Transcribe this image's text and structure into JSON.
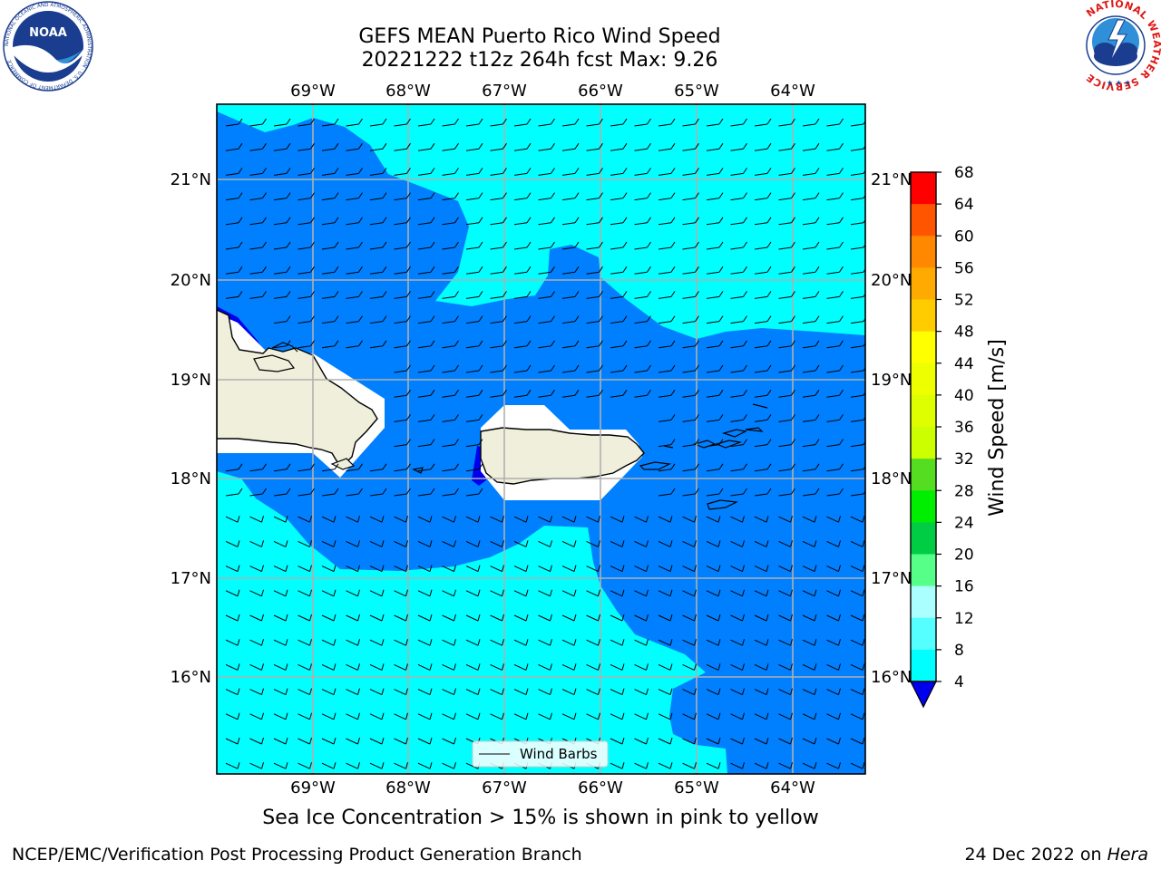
{
  "header": {
    "title_line1": "GEFS MEAN Puerto Rico Wind Speed",
    "title_line2": "20221222 t12z 264h fcst   Max: 9.26"
  },
  "logos": {
    "noaa_text": "NOAA",
    "noaa_ring_text": "NATIONAL OCEANIC AND ATMOSPHERIC ADMINISTRATION · U.S. DEPARTMENT OF COMMERCE",
    "nws_ring_text": "NATIONAL WEATHER SERVICE"
  },
  "map": {
    "lon_labels": [
      "69°W",
      "68°W",
      "67°W",
      "66°W",
      "65°W",
      "64°W"
    ],
    "lat_labels": [
      "21°N",
      "20°N",
      "19°N",
      "18°N",
      "17°N",
      "16°N"
    ],
    "legend_label": "Wind Barbs",
    "colors": {
      "ocean_high": "#00ffff",
      "ocean_low": "#0080ff",
      "ocean_min": "#0000ee",
      "land": "#efefdc",
      "grid": "#b0b0b0"
    }
  },
  "colorbar": {
    "label": "Wind Speed [m/s]",
    "ticks": [
      "68",
      "64",
      "60",
      "56",
      "52",
      "48",
      "44",
      "40",
      "36",
      "32",
      "28",
      "24",
      "20",
      "16",
      "12",
      "8",
      "4"
    ],
    "colors": [
      "#ff0000",
      "#ff2200",
      "#ff5500",
      "#ff8800",
      "#ffaa00",
      "#ffcc00",
      "#ffff00",
      "#eeff00",
      "#ddff00",
      "#ccff00",
      "#55dd22",
      "#00ee00",
      "#00cc44",
      "#55ff88",
      "#aaffff",
      "#55ffff",
      "#00ffff",
      "#0080ff"
    ],
    "under_color": "#0000ee"
  },
  "footer": {
    "note": "Sea Ice Concentration > 15% is shown in pink to yellow",
    "left": "NCEP/EMC/Verification Post Processing Product Generation Branch",
    "date": "24 Dec 2022 on ",
    "host": "Hera"
  }
}
